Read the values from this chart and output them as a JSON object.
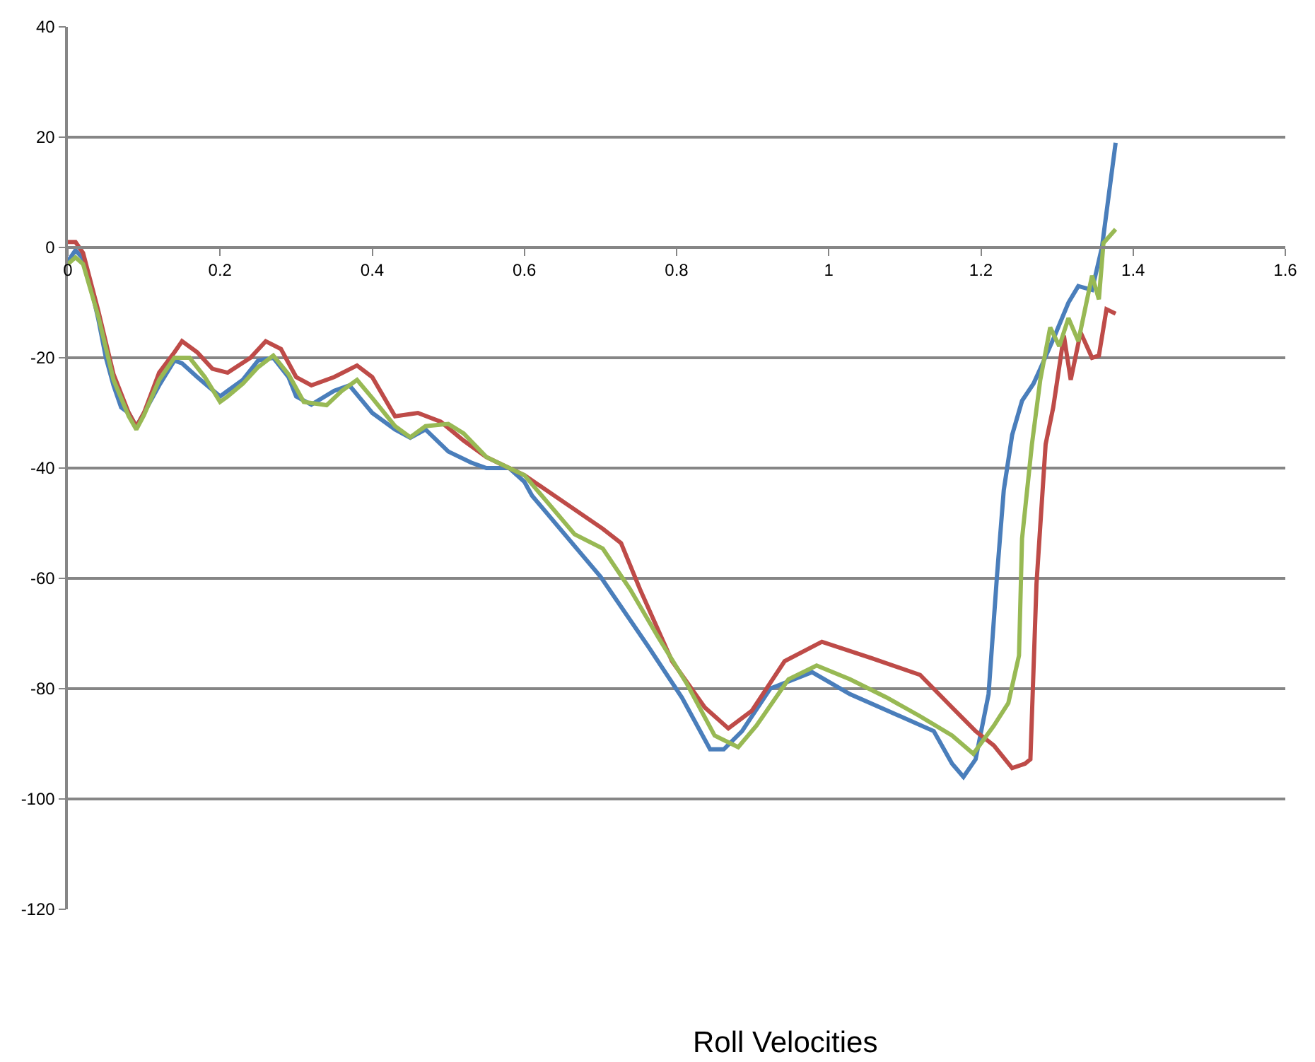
{
  "chart_data": {
    "type": "line",
    "title": "Roll Velocities",
    "xlim": [
      0,
      1.6
    ],
    "xticks": [
      0,
      0.2,
      0.4,
      0.6,
      0.8,
      1,
      1.2,
      1.4,
      1.6
    ],
    "ylim": [
      -120,
      40
    ],
    "yticks": [
      -120,
      -100,
      -80,
      -60,
      -40,
      -20,
      0,
      20,
      40
    ],
    "grid": "y",
    "marker": "none",
    "line_style": "solid",
    "series": [
      {
        "color": "#4a7ebb",
        "x": [
          0,
          0.01,
          0.02,
          0.03,
          0.04,
          0.05,
          0.06,
          0.07,
          0.08,
          0.09,
          0.1,
          0.12,
          0.14,
          0.15,
          0.17,
          0.2,
          0.21,
          0.23,
          0.25,
          0.27,
          0.29,
          0.3,
          0.32,
          0.35,
          0.37,
          0.4,
          0.43,
          0.45,
          0.47,
          0.5,
          0.53,
          0.55,
          0.58,
          0.6,
          0.61,
          0.7,
          0.763,
          0.807,
          0.844,
          0.862,
          0.886,
          0.923,
          0.978,
          1.028,
          1.089,
          1.138,
          1.162,
          1.177,
          1.193,
          1.21,
          1.221,
          1.23,
          1.241,
          1.254,
          1.269,
          1.278,
          1.297,
          1.315,
          1.328,
          1.346,
          1.359,
          1.377
        ],
        "values": [
          -2.5,
          -0.5,
          -2,
          -7,
          -13,
          -20,
          -25,
          -29,
          -30,
          -32.5,
          -30,
          -25,
          -20.5,
          -21,
          -23.5,
          -27,
          -26,
          -24,
          -20.5,
          -20,
          -23.5,
          -27,
          -28.5,
          -26,
          -25,
          -30,
          -33,
          -34.5,
          -33,
          -37,
          -39,
          -40,
          -40,
          -42.5,
          -45,
          -59.7,
          -72.4,
          -81.6,
          -91,
          -91,
          -87.7,
          -80,
          -77,
          -81,
          -84.7,
          -87.7,
          -93.6,
          -96,
          -92.8,
          -81,
          -59.7,
          -44,
          -34,
          -27.8,
          -24.7,
          -22,
          -16,
          -10,
          -7,
          -7.7,
          0,
          19
        ]
      },
      {
        "color": "#be4b48",
        "x": [
          0,
          0.01,
          0.02,
          0.04,
          0.06,
          0.08,
          0.09,
          0.1,
          0.12,
          0.14,
          0.15,
          0.17,
          0.19,
          0.21,
          0.24,
          0.26,
          0.28,
          0.3,
          0.32,
          0.35,
          0.38,
          0.4,
          0.43,
          0.46,
          0.49,
          0.52,
          0.55,
          0.58,
          0.6,
          0.703,
          0.727,
          0.752,
          0.794,
          0.837,
          0.868,
          0.899,
          0.942,
          0.991,
          1.057,
          1.12,
          1.162,
          1.193,
          1.217,
          1.241,
          1.258,
          1.265,
          1.273,
          1.285,
          1.295,
          1.309,
          1.318,
          1.331,
          1.346,
          1.355,
          1.365,
          1.377
        ],
        "values": [
          1,
          1,
          -1,
          -11.5,
          -23,
          -30,
          -32.5,
          -30,
          -22.7,
          -19,
          -17,
          -19,
          -22,
          -22.7,
          -20,
          -17,
          -18.4,
          -23.5,
          -25,
          -23.5,
          -21.4,
          -23.5,
          -30.6,
          -30,
          -31.6,
          -35,
          -38,
          -40,
          -41.3,
          -51,
          -53.6,
          -62,
          -75,
          -83.4,
          -87.2,
          -84,
          -75,
          -71.5,
          -74.5,
          -77.5,
          -83.4,
          -87.7,
          -90.3,
          -94.4,
          -93.6,
          -92.8,
          -61,
          -35.7,
          -29,
          -16,
          -24,
          -15.4,
          -20,
          -19.6,
          -11.2,
          -12
        ]
      },
      {
        "color": "#98b954",
        "x": [
          0,
          0.01,
          0.02,
          0.04,
          0.06,
          0.08,
          0.09,
          0.1,
          0.12,
          0.14,
          0.16,
          0.18,
          0.2,
          0.21,
          0.23,
          0.25,
          0.27,
          0.29,
          0.31,
          0.34,
          0.36,
          0.38,
          0.4,
          0.43,
          0.45,
          0.47,
          0.5,
          0.52,
          0.55,
          0.58,
          0.6,
          0.666,
          0.703,
          0.739,
          0.776,
          0.813,
          0.85,
          0.881,
          0.905,
          0.947,
          0.984,
          1.028,
          1.076,
          1.12,
          1.162,
          1.19,
          1.217,
          1.236,
          1.25,
          1.254,
          1.267,
          1.278,
          1.291,
          1.303,
          1.315,
          1.328,
          1.346,
          1.355,
          1.361,
          1.377
        ],
        "values": [
          -3,
          -1.8,
          -3,
          -12.5,
          -24,
          -30.6,
          -33,
          -30.4,
          -24,
          -20,
          -20,
          -23.5,
          -28,
          -27,
          -24.7,
          -21.7,
          -19.6,
          -23,
          -28,
          -28.6,
          -26,
          -24,
          -27.3,
          -32.4,
          -34.4,
          -32.4,
          -32,
          -33.7,
          -38,
          -40,
          -41.3,
          -52,
          -54.6,
          -62,
          -70.7,
          -79,
          -88.5,
          -90.6,
          -86.7,
          -78.3,
          -75.8,
          -78.3,
          -81.6,
          -85,
          -88.5,
          -91.8,
          -86.7,
          -82.6,
          -74,
          -52.8,
          -35.7,
          -24,
          -14.5,
          -17.9,
          -12.8,
          -17,
          -5.1,
          -9.4,
          0.8,
          3.3
        ]
      }
    ]
  }
}
